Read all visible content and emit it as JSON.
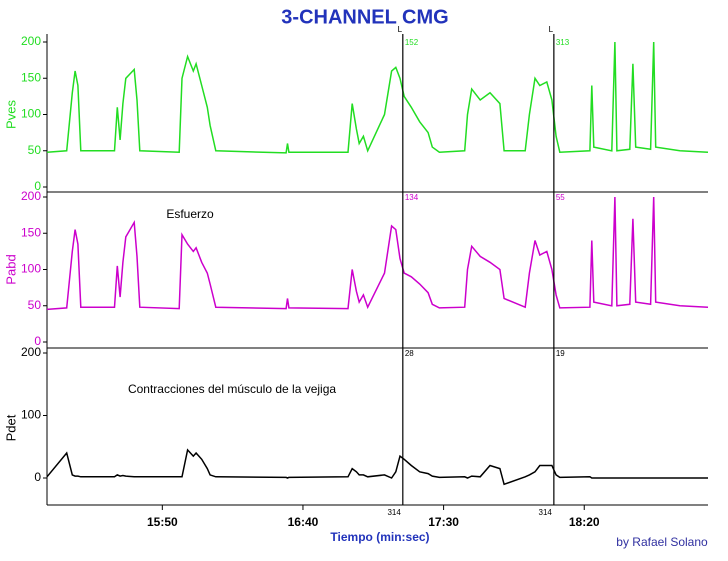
{
  "title": "3-CHANNEL CMG",
  "credit": "by Rafael Solano",
  "markers": [
    {
      "x": 1035.5,
      "top_label": "L",
      "panel_labels": [
        "152",
        "134",
        "28"
      ],
      "bottom_label": "314"
    },
    {
      "x": 1089.2,
      "top_label": "L",
      "panel_labels": [
        "313",
        "55",
        "19"
      ],
      "bottom_label": "314"
    }
  ],
  "chart_data": [
    {
      "type": "line",
      "ylabel": "Pves",
      "color": "#22dd22",
      "xlim": [
        909,
        1144
      ],
      "ylim": [
        0,
        200
      ],
      "yticks": [
        0,
        50,
        100,
        150,
        200
      ],
      "x": [
        909,
        916,
        918,
        919,
        920,
        921,
        933,
        934,
        935,
        936,
        937,
        940,
        941,
        942,
        956,
        957,
        959,
        961,
        962,
        964,
        966,
        967,
        969,
        994,
        994.5,
        995,
        1016,
        1017.5,
        1019,
        1020,
        1021.5,
        1023,
        1029,
        1031.5,
        1033,
        1034.5,
        1036,
        1038.5,
        1041.5,
        1044.5,
        1046,
        1048.5,
        1057.5,
        1058.5,
        1060,
        1063,
        1066.5,
        1070,
        1071.5,
        1079,
        1080.5,
        1082.5,
        1084.2,
        1086.7,
        1088.5,
        1090,
        1091.3,
        1102,
        1102.7,
        1103.4,
        1109.8,
        1110.9,
        1111.6,
        1116.2,
        1117.3,
        1118.3,
        1123.6,
        1124.7,
        1125.4,
        1134,
        1144
      ],
      "values": [
        48,
        50,
        130,
        160,
        140,
        50,
        50,
        110,
        65,
        115,
        150,
        162,
        120,
        50,
        48,
        150,
        180,
        160,
        170,
        140,
        110,
        85,
        50,
        47,
        60,
        48,
        48,
        115,
        80,
        60,
        70,
        50,
        100,
        160,
        165,
        150,
        125,
        110,
        90,
        75,
        55,
        48,
        50,
        100,
        135,
        120,
        130,
        115,
        50,
        50,
        100,
        150,
        140,
        145,
        120,
        70,
        48,
        50,
        140,
        55,
        50,
        200,
        50,
        52,
        170,
        55,
        52,
        200,
        55,
        50,
        48
      ]
    },
    {
      "type": "line",
      "ylabel": "Pabd",
      "color": "#cc00cc",
      "xlim": [
        909,
        1144
      ],
      "ylim": [
        0,
        200
      ],
      "yticks": [
        0,
        50,
        100,
        150,
        200
      ],
      "annotation": "Esfuerzo",
      "x": [
        909,
        916,
        918,
        919,
        920,
        921,
        933,
        934,
        935,
        936,
        937,
        940,
        941,
        942,
        956,
        957,
        959,
        961,
        962,
        964,
        966,
        967,
        969,
        994,
        994.5,
        995,
        1016,
        1017.5,
        1019,
        1020,
        1021.5,
        1023,
        1029,
        1031.5,
        1033,
        1034.5,
        1036,
        1038.5,
        1041.5,
        1044.5,
        1046,
        1048.5,
        1057.5,
        1058.5,
        1060,
        1063,
        1066.5,
        1070,
        1071.5,
        1079,
        1080.5,
        1082.5,
        1084.2,
        1086.7,
        1088.5,
        1090,
        1091.3,
        1102,
        1102.7,
        1103.4,
        1109.8,
        1110.9,
        1111.6,
        1116.2,
        1117.3,
        1118.3,
        1123.6,
        1124.7,
        1125.4,
        1134,
        1144
      ],
      "values": [
        45,
        47,
        125,
        155,
        135,
        48,
        48,
        105,
        62,
        110,
        145,
        165,
        118,
        48,
        46,
        148,
        135,
        125,
        130,
        110,
        95,
        80,
        48,
        46,
        60,
        47,
        46,
        100,
        70,
        55,
        65,
        48,
        95,
        160,
        155,
        115,
        95,
        90,
        80,
        68,
        52,
        47,
        48,
        100,
        132,
        118,
        110,
        100,
        60,
        48,
        95,
        140,
        120,
        125,
        100,
        65,
        47,
        48,
        140,
        55,
        50,
        200,
        50,
        52,
        170,
        55,
        52,
        200,
        55,
        50,
        48
      ]
    },
    {
      "type": "line",
      "ylabel": "Pdet",
      "color": "#000000",
      "xlim": [
        909,
        1144
      ],
      "ylim": [
        -40,
        200
      ],
      "yticks": [
        0,
        100,
        200
      ],
      "annotation": "Contracciones del músculo de la vejiga",
      "xlabel": "Tiempo (min:sec)",
      "xticks": [
        {
          "value": 950,
          "label": "15:50"
        },
        {
          "value": 1000,
          "label": "16:40"
        },
        {
          "value": 1050,
          "label": "17:30"
        },
        {
          "value": 1100,
          "label": "18:20"
        }
      ],
      "x": [
        909,
        916,
        918,
        919,
        920,
        921,
        933,
        934,
        935,
        936,
        937,
        940,
        941,
        942,
        956,
        957,
        959,
        961,
        962,
        964,
        966,
        967,
        969,
        994,
        994.5,
        995,
        1016,
        1017.5,
        1019,
        1020,
        1021.5,
        1023,
        1029,
        1031.5,
        1033,
        1034.5,
        1036,
        1038.5,
        1041.5,
        1044.5,
        1046,
        1048.5,
        1057.5,
        1058.5,
        1060,
        1063,
        1066.5,
        1070,
        1071.5,
        1079,
        1080.5,
        1082.5,
        1084.2,
        1086.7,
        1088.5,
        1090,
        1091.3,
        1102,
        1102.7,
        1103.4,
        1109.8,
        1110.9,
        1111.6,
        1116.2,
        1117.3,
        1118.3,
        1123.6,
        1124.7,
        1125.4,
        1134,
        1144
      ],
      "values": [
        2,
        40,
        5,
        3,
        3,
        2,
        2,
        5,
        3,
        4,
        3,
        2,
        2,
        2,
        2,
        2,
        45,
        35,
        40,
        30,
        15,
        5,
        2,
        1,
        0,
        1,
        2,
        15,
        10,
        5,
        5,
        2,
        5,
        0,
        10,
        35,
        30,
        20,
        10,
        7,
        3,
        1,
        2,
        0,
        3,
        2,
        20,
        15,
        -10,
        2,
        5,
        10,
        20,
        20,
        20,
        5,
        1,
        2,
        0,
        0,
        0,
        0,
        0,
        0,
        0,
        0,
        0,
        0,
        0,
        0,
        0
      ]
    }
  ]
}
